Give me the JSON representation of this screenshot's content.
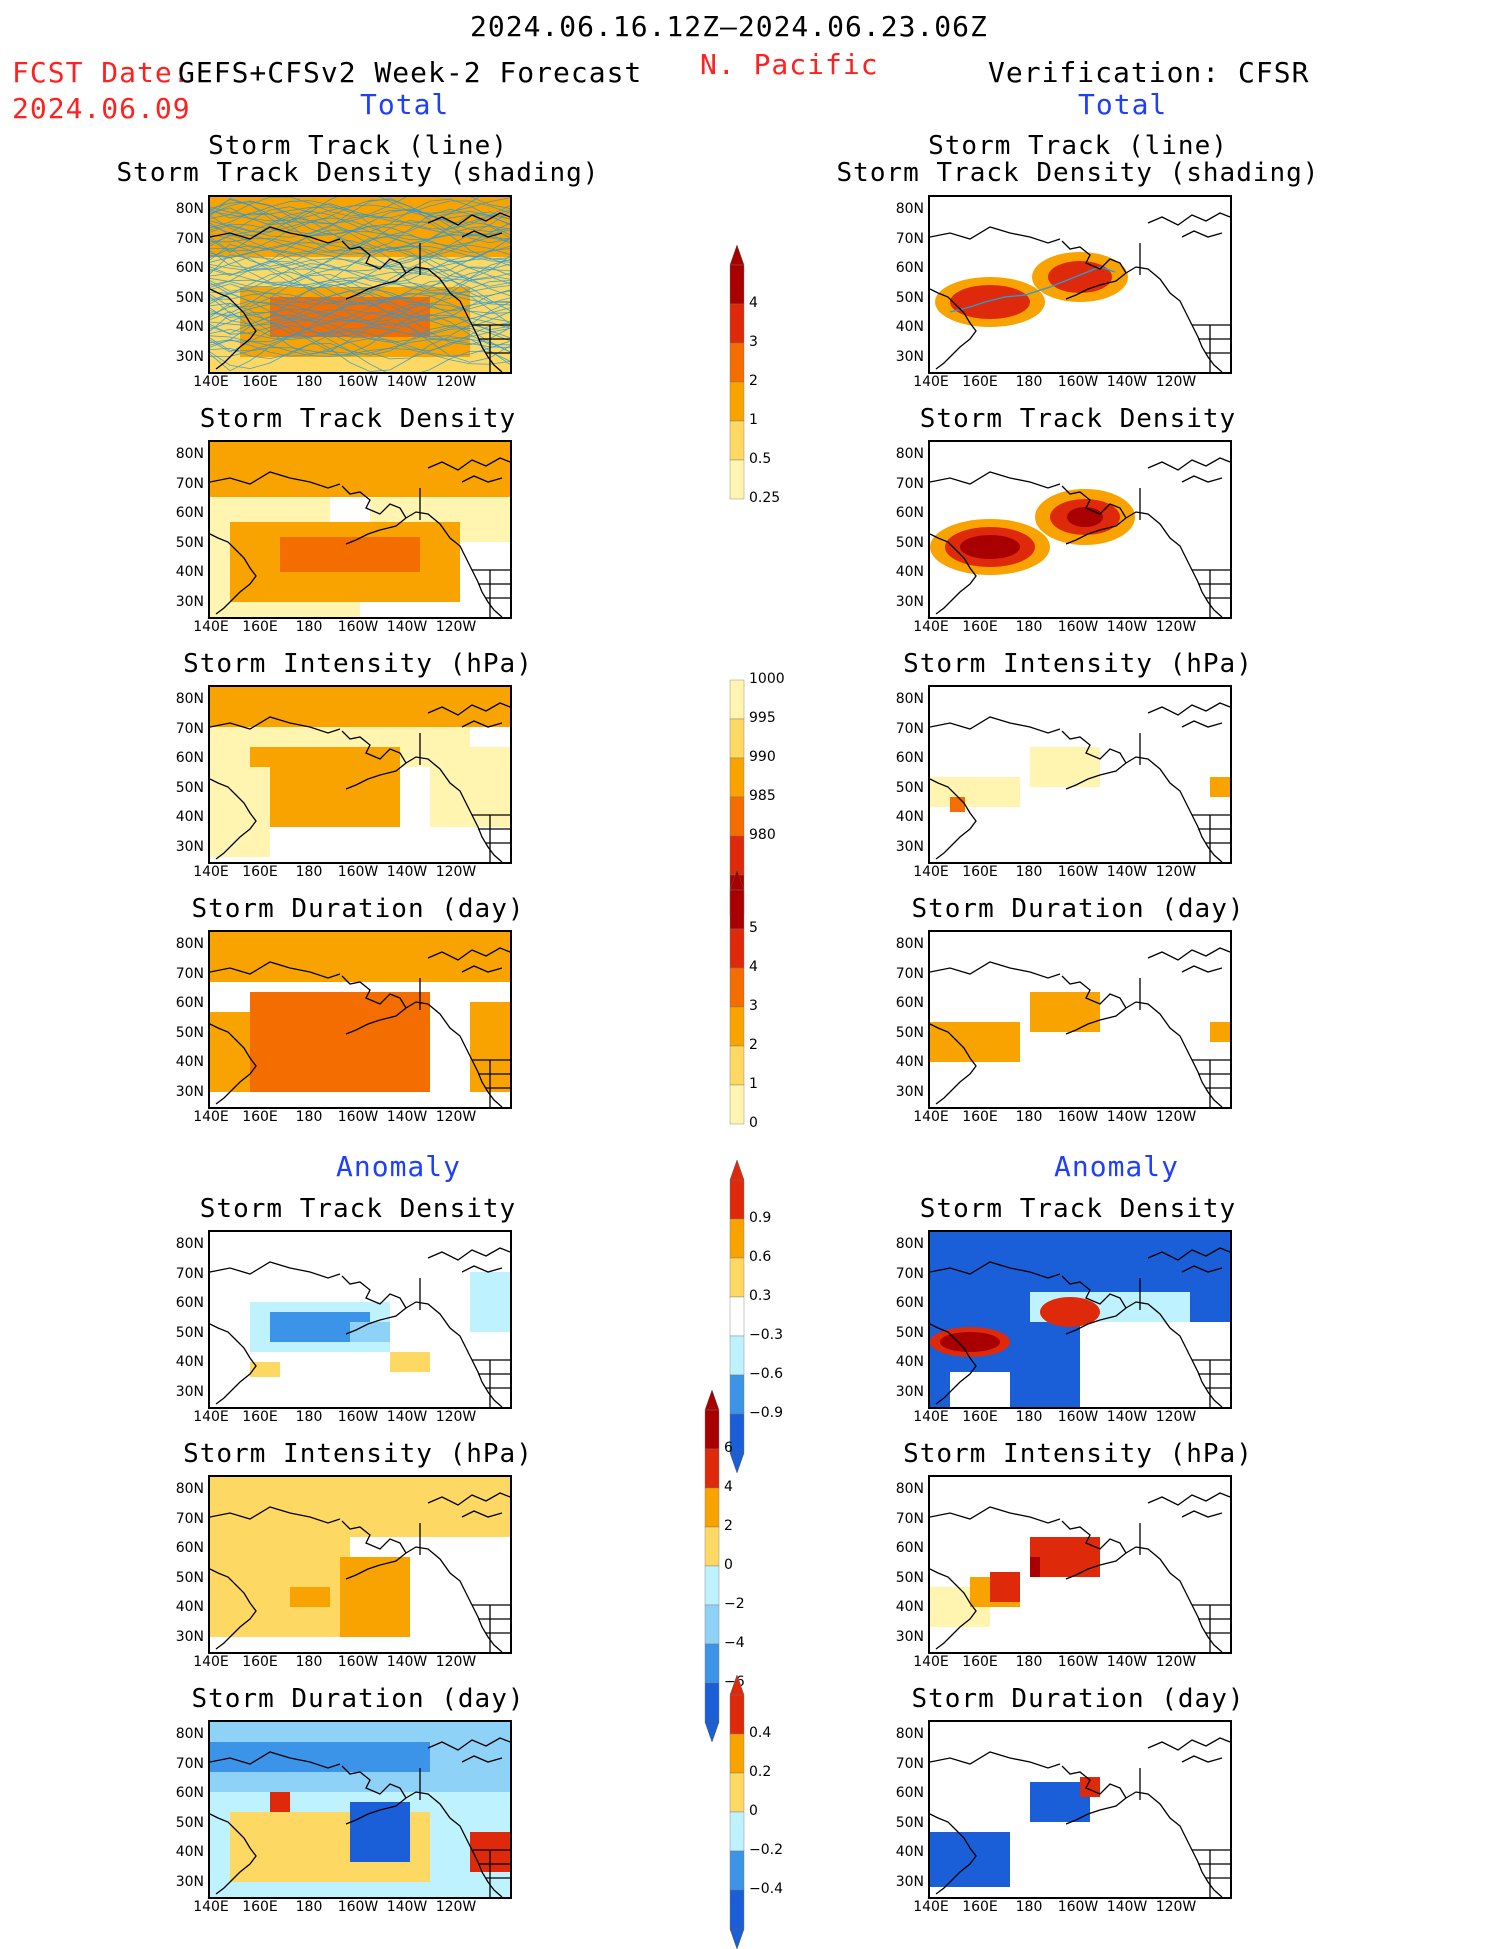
{
  "header": {
    "date_range": "2024.06.16.12Z–2024.06.23.06Z",
    "fcst_label": "FCST Date:",
    "fcst_model": "GEFS+CFSv2 Week-2 Forecast",
    "fcst_date": "2024.06.09",
    "region": "N. Pacific",
    "verification": "Verification: CFSR",
    "total_left": "Total",
    "total_right": "Total",
    "anomaly_left": "Anomaly",
    "anomaly_right": "Anomaly"
  },
  "panel_titles": {
    "track_line": "Storm Track (line)",
    "track_shading": "Storm Track Density (shading)",
    "density": "Storm Track Density",
    "intensity": "Storm Intensity (hPa)",
    "duration": "Storm Duration (day)"
  },
  "axes": {
    "lat_labels": [
      "80N",
      "70N",
      "60N",
      "50N",
      "40N",
      "30N"
    ],
    "lon_labels": [
      "140E",
      "160E",
      "180",
      "160W",
      "140W",
      "120W"
    ]
  },
  "colorbars": {
    "density_total": [
      "4",
      "3",
      "2",
      "1",
      "0.5",
      "0.25"
    ],
    "intensity_total": [
      "1000",
      "995",
      "990",
      "985",
      "980"
    ],
    "duration_total": [
      "5",
      "4",
      "3",
      "2",
      "1",
      "0"
    ],
    "density_anom": [
      "0.9",
      "0.6",
      "0.3",
      "−0.3",
      "−0.6",
      "−0.9"
    ],
    "intensity_anom": [
      "6",
      "4",
      "2",
      "0",
      "−2",
      "−4",
      "−6"
    ],
    "duration_anom": [
      "0.4",
      "0.2",
      "0",
      "−0.2",
      "−0.4"
    ]
  },
  "colors": {
    "warm": [
      "#fff5b0",
      "#fdd862",
      "#f9a300",
      "#f46d00",
      "#de2a0a",
      "#a80000"
    ],
    "cool": [
      "#bff2ff",
      "#8fd2f8",
      "#3c94e8",
      "#1a5fd8"
    ],
    "track_line": "#2a9ad8"
  }
}
